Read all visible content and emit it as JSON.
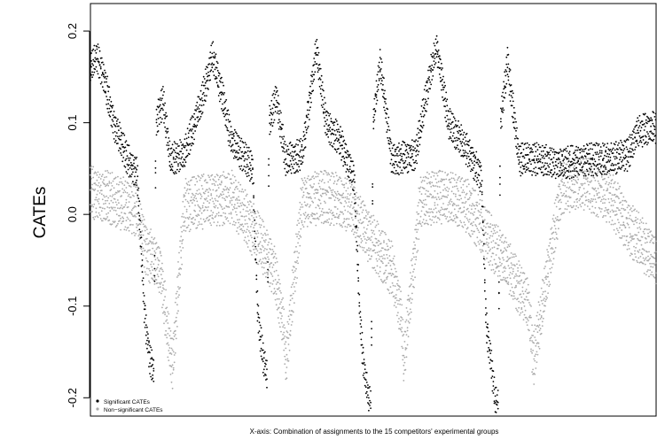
{
  "chart_data": {
    "type": "scatter",
    "title": "",
    "ylabel": "CATEs",
    "xlabel": "X-axis: Combination of assignments to the 15 competitors' experimental groups",
    "ylim": [
      -0.22,
      0.23
    ],
    "yticks": [
      -0.2,
      -0.1,
      0.0,
      0.1,
      0.2
    ],
    "ytick_labels": [
      "-0.2",
      "-0.1",
      "0.0",
      "0.1",
      "0.2"
    ],
    "x_count": 1200,
    "grid": false,
    "legend": {
      "position": "bottom-left",
      "entries": [
        {
          "label": "Significant CATEs",
          "color": "#000000"
        },
        {
          "label": "Non−significant CATEs",
          "color": "#aaaaaa"
        }
      ]
    },
    "series": [
      {
        "label": "Significant CATEs",
        "color": "#000000",
        "note": "values shown are the per-index central tendency of the black points; the figure shows roughly 10 overlapping curves around these levels",
        "points": [
          [
            1,
            0.16
          ],
          [
            15,
            0.172
          ],
          [
            30,
            0.15
          ],
          [
            50,
            0.1
          ],
          [
            80,
            0.06
          ],
          [
            100,
            0.045
          ],
          [
            115,
            -0.1
          ],
          [
            120,
            -0.13
          ],
          [
            128,
            -0.16
          ],
          [
            135,
            -0.17
          ],
          [
            140,
            0.1
          ],
          [
            155,
            0.125
          ],
          [
            170,
            0.06
          ],
          [
            200,
            0.065
          ],
          [
            235,
            0.12
          ],
          [
            260,
            0.173
          ],
          [
            280,
            0.13
          ],
          [
            300,
            0.08
          ],
          [
            345,
            0.05
          ],
          [
            355,
            -0.1
          ],
          [
            360,
            -0.13
          ],
          [
            368,
            -0.16
          ],
          [
            375,
            -0.172
          ],
          [
            380,
            0.1
          ],
          [
            395,
            0.128
          ],
          [
            415,
            0.06
          ],
          [
            450,
            0.065
          ],
          [
            470,
            0.14
          ],
          [
            480,
            0.18
          ],
          [
            500,
            0.1
          ],
          [
            530,
            0.08
          ],
          [
            560,
            0.04
          ],
          [
            572,
            -0.11
          ],
          [
            580,
            -0.165
          ],
          [
            590,
            -0.2
          ],
          [
            596,
            -0.21
          ],
          [
            600,
            0.1
          ],
          [
            615,
            0.165
          ],
          [
            640,
            0.06
          ],
          [
            690,
            0.065
          ],
          [
            720,
            0.15
          ],
          [
            735,
            0.183
          ],
          [
            760,
            0.1
          ],
          [
            800,
            0.07
          ],
          [
            830,
            0.04
          ],
          [
            840,
            -0.12
          ],
          [
            850,
            -0.16
          ],
          [
            858,
            -0.2
          ],
          [
            865,
            -0.21
          ],
          [
            870,
            0.1
          ],
          [
            885,
            0.165
          ],
          [
            910,
            0.06
          ],
          [
            950,
            0.06
          ],
          [
            1000,
            0.055
          ],
          [
            1050,
            0.06
          ],
          [
            1100,
            0.06
          ],
          [
            1140,
            0.065
          ],
          [
            1160,
            0.09
          ],
          [
            1200,
            0.095
          ]
        ]
      },
      {
        "label": "Non-significant CATEs",
        "color": "#aaaaaa",
        "note": "values shown are the per-index central tendency of the grey points; the figure shows a dense band between about -0.05 and 0.05 with sparser excursions to -0.17 and 0.11",
        "points": [
          [
            1,
            0.025
          ],
          [
            50,
            0.015
          ],
          [
            100,
            0.005
          ],
          [
            120,
            -0.04
          ],
          [
            150,
            -0.06
          ],
          [
            165,
            -0.13
          ],
          [
            175,
            -0.165
          ],
          [
            200,
            0.01
          ],
          [
            250,
            0.015
          ],
          [
            300,
            0.02
          ],
          [
            350,
            -0.02
          ],
          [
            390,
            -0.06
          ],
          [
            410,
            -0.12
          ],
          [
            415,
            -0.16
          ],
          [
            450,
            0.015
          ],
          [
            500,
            0.02
          ],
          [
            550,
            0.01
          ],
          [
            600,
            -0.03
          ],
          [
            640,
            -0.06
          ],
          [
            660,
            -0.11
          ],
          [
            665,
            -0.16
          ],
          [
            700,
            0.015
          ],
          [
            750,
            0.02
          ],
          [
            800,
            0.01
          ],
          [
            850,
            -0.03
          ],
          [
            890,
            -0.06
          ],
          [
            930,
            -0.1
          ],
          [
            940,
            -0.16
          ],
          [
            1000,
            0.03
          ],
          [
            1050,
            0.035
          ],
          [
            1100,
            0.02
          ],
          [
            1150,
            -0.02
          ],
          [
            1200,
            -0.05
          ]
        ]
      }
    ]
  }
}
